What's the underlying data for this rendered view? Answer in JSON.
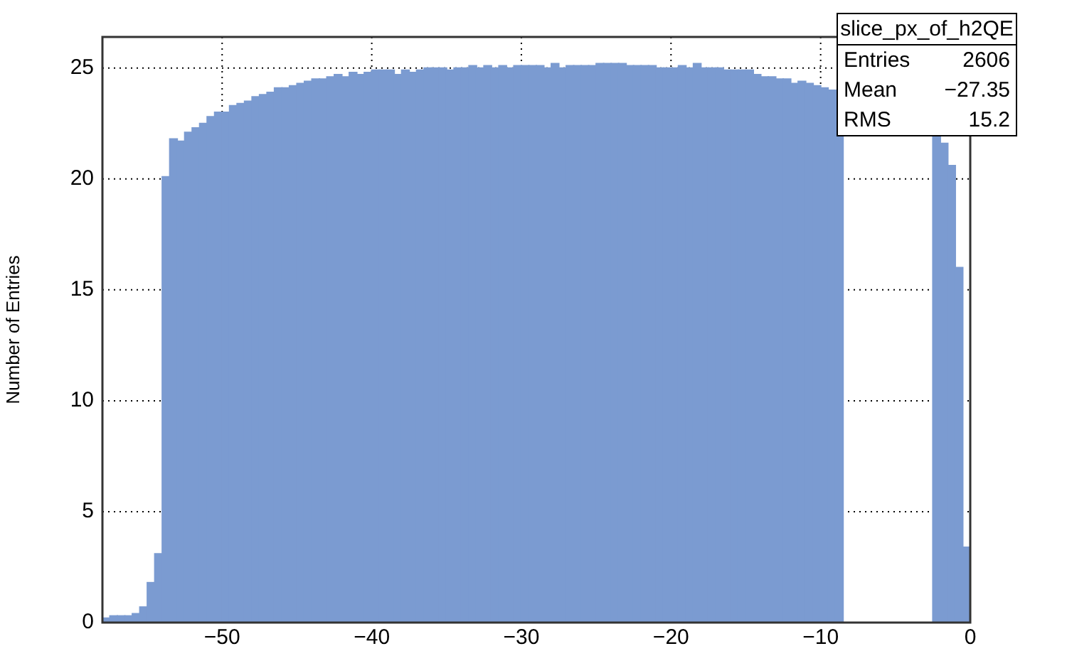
{
  "chart_data": {
    "type": "histogram",
    "ylabel": "Number of Entries",
    "bins": [
      -58,
      -57.5,
      -57,
      -56.5,
      -56,
      -55.5,
      -55,
      -54.5,
      -54,
      -53.5,
      -53,
      -52.5,
      -52,
      -51.5,
      -51,
      -50.5,
      -50,
      -49.5,
      -49,
      -48.5,
      -48,
      -47.5,
      -47,
      -46.5,
      -46,
      -45.5,
      -45,
      -44.5,
      -44,
      -43.5,
      -43,
      -42.5,
      -42,
      -41.5,
      -41,
      -40.5,
      -40,
      -39.5,
      -39,
      -38.5,
      -38,
      -37.5,
      -37,
      -36.5,
      -36,
      -35.5,
      -35,
      -34.5,
      -34,
      -33.5,
      -33,
      -32.5,
      -32,
      -31.5,
      -31,
      -30.5,
      -30,
      -29.5,
      -29,
      -28.5,
      -28,
      -27.5,
      -27,
      -26.5,
      -26,
      -25.5,
      -25,
      -24.5,
      -24,
      -23.5,
      -23,
      -22.5,
      -22,
      -21.5,
      -21,
      -20.5,
      -20,
      -19.5,
      -19,
      -18.5,
      -18,
      -17.5,
      -17,
      -16.5,
      -16,
      -15.5,
      -15,
      -14.5,
      -14,
      -13.5,
      -13,
      -12.5,
      -12,
      -11.5,
      -11,
      -10.5,
      -10,
      -9.5,
      -9,
      -8.5,
      -8,
      -7.5,
      -7,
      -6.5,
      -6,
      -5.5,
      -5,
      -4.5,
      -4,
      -3.5,
      -3,
      -2.5,
      -2,
      -1.5,
      -1,
      -0.5,
      0
    ],
    "values": [
      0.2,
      0.3,
      0.3,
      0.3,
      0.4,
      0.7,
      1.8,
      3.1,
      20.1,
      21.8,
      21.7,
      22.1,
      22.3,
      22.5,
      22.8,
      23.0,
      23.0,
      23.3,
      23.4,
      23.5,
      23.7,
      23.8,
      23.9,
      24.1,
      24.1,
      24.2,
      24.3,
      24.4,
      24.5,
      24.5,
      24.6,
      24.7,
      24.6,
      24.8,
      24.7,
      24.8,
      24.9,
      24.9,
      24.9,
      24.7,
      24.9,
      24.8,
      24.9,
      25.0,
      25.0,
      25.0,
      24.9,
      25.0,
      25.0,
      25.1,
      25.0,
      25.1,
      25.0,
      25.1,
      25.0,
      25.1,
      25.1,
      25.1,
      25.1,
      25.0,
      25.2,
      25.0,
      25.1,
      25.1,
      25.1,
      25.1,
      25.2,
      25.2,
      25.2,
      25.2,
      25.1,
      25.1,
      25.1,
      25.1,
      25.0,
      25.0,
      25.0,
      25.1,
      25.0,
      25.2,
      25.0,
      25.0,
      25.0,
      24.9,
      24.9,
      24.9,
      24.9,
      24.7,
      24.6,
      24.6,
      24.5,
      24.5,
      24.3,
      24.4,
      24.3,
      24.2,
      24.1,
      24.0,
      24.0,
      null,
      null,
      null,
      null,
      null,
      null,
      null,
      null,
      null,
      null,
      null,
      null,
      22.0,
      21.6,
      20.6,
      16,
      3.4
    ],
    "color": "#7b9bd1",
    "xlim": [
      -58,
      0
    ],
    "xticks": [
      -50,
      -40,
      -30,
      -20,
      -10,
      0
    ],
    "ylim": [
      0,
      26.4
    ],
    "yticks": [
      0,
      5,
      10,
      15,
      20,
      25
    ],
    "grid": true,
    "annotations": [
      "slice_px_of_h2QE",
      "Entries 2606",
      "Mean −27.35",
      "RMS 15.2"
    ]
  }
}
